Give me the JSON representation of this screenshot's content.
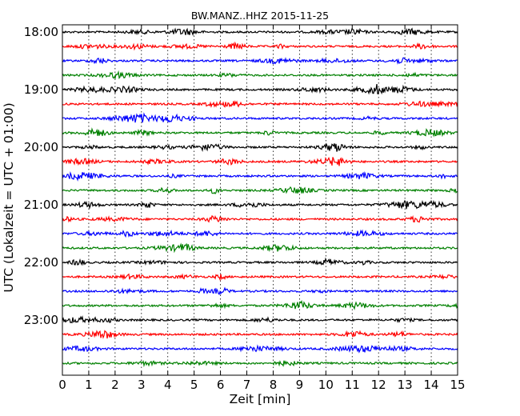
{
  "chart_data": {
    "type": "line",
    "title": "BW.MANZ..HHZ 2015-11-25",
    "xlabel": "Zeit  [min]",
    "ylabel": "UTC (Lokalzeit = UTC + 01:00)",
    "xlim": [
      0,
      15
    ],
    "x_ticks": [
      0,
      1,
      2,
      3,
      4,
      5,
      6,
      7,
      8,
      9,
      10,
      11,
      12,
      13,
      14,
      15
    ],
    "y_tick_labels": [
      "18:00",
      "19:00",
      "20:00",
      "21:00",
      "22:00",
      "23:00"
    ],
    "trace_start_times": [
      "18:00",
      "18:15",
      "18:30",
      "18:45",
      "19:00",
      "19:15",
      "19:30",
      "19:45",
      "20:00",
      "20:15",
      "20:30",
      "20:45",
      "21:00",
      "21:15",
      "21:30",
      "21:45",
      "22:00",
      "22:15",
      "22:30",
      "22:45",
      "23:00",
      "23:15",
      "23:30",
      "23:45"
    ],
    "trace_color_cycle": [
      "#000000",
      "#ff0000",
      "#0000ff",
      "#008000"
    ],
    "grid": "vertical dotted lines at each minute"
  }
}
